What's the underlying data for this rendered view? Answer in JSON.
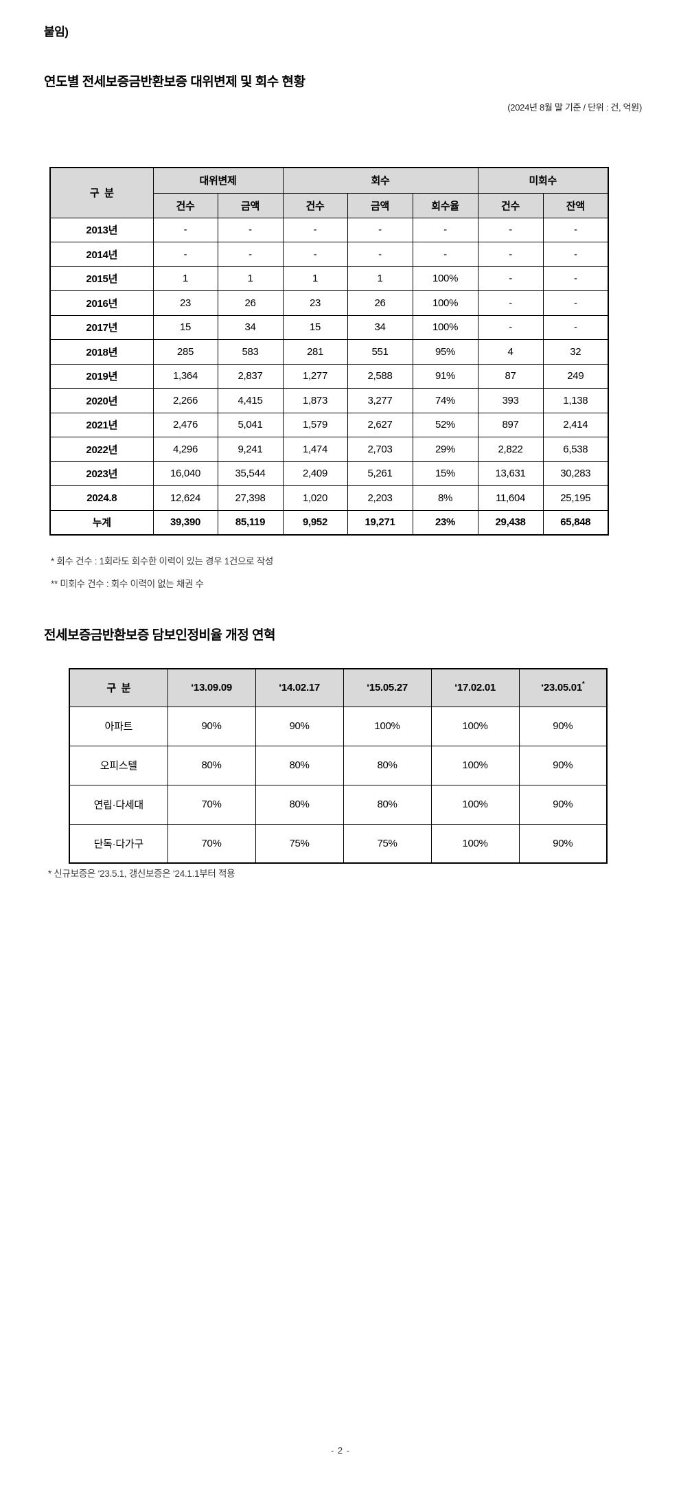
{
  "page": {
    "attachment_label": "붙임)",
    "page_number": "- 2 -"
  },
  "colors": {
    "header_bg": "#d9d9d9",
    "border": "#000000",
    "text": "#000000"
  },
  "section1": {
    "title": "연도별 전세보증금반환보증 대위변제 및 회수 현황",
    "caption": "(2024년 8월 말 기준 / 단위 : 건, 억원)",
    "table": {
      "col_group_header": "구  분",
      "groups": [
        {
          "label": "대위변제",
          "cols": [
            "건수",
            "금액"
          ]
        },
        {
          "label": "회수",
          "cols": [
            "건수",
            "금액",
            "회수율"
          ]
        },
        {
          "label": "미회수",
          "cols": [
            "건수",
            "잔액"
          ]
        }
      ],
      "rows": [
        {
          "label": "2013년",
          "total": false,
          "values": [
            "-",
            "-",
            "-",
            "-",
            "-",
            "-",
            "-"
          ]
        },
        {
          "label": "2014년",
          "total": false,
          "values": [
            "-",
            "-",
            "-",
            "-",
            "-",
            "-",
            "-"
          ]
        },
        {
          "label": "2015년",
          "total": false,
          "values": [
            "1",
            "1",
            "1",
            "1",
            "100%",
            "-",
            "-"
          ]
        },
        {
          "label": "2016년",
          "total": false,
          "values": [
            "23",
            "26",
            "23",
            "26",
            "100%",
            "-",
            "-"
          ]
        },
        {
          "label": "2017년",
          "total": false,
          "values": [
            "15",
            "34",
            "15",
            "34",
            "100%",
            "-",
            "-"
          ]
        },
        {
          "label": "2018년",
          "total": false,
          "values": [
            "285",
            "583",
            "281",
            "551",
            "95%",
            "4",
            "32"
          ]
        },
        {
          "label": "2019년",
          "total": false,
          "values": [
            "1,364",
            "2,837",
            "1,277",
            "2,588",
            "91%",
            "87",
            "249"
          ]
        },
        {
          "label": "2020년",
          "total": false,
          "values": [
            "2,266",
            "4,415",
            "1,873",
            "3,277",
            "74%",
            "393",
            "1,138"
          ]
        },
        {
          "label": "2021년",
          "total": false,
          "values": [
            "2,476",
            "5,041",
            "1,579",
            "2,627",
            "52%",
            "897",
            "2,414"
          ]
        },
        {
          "label": "2022년",
          "total": false,
          "values": [
            "4,296",
            "9,241",
            "1,474",
            "2,703",
            "29%",
            "2,822",
            "6,538"
          ]
        },
        {
          "label": "2023년",
          "total": false,
          "values": [
            "16,040",
            "35,544",
            "2,409",
            "5,261",
            "15%",
            "13,631",
            "30,283"
          ]
        },
        {
          "label": "2024.8",
          "total": false,
          "values": [
            "12,624",
            "27,398",
            "1,020",
            "2,203",
            "8%",
            "11,604",
            "25,195"
          ]
        },
        {
          "label": "누계",
          "total": true,
          "values": [
            "39,390",
            "85,119",
            "9,952",
            "19,271",
            "23%",
            "29,438",
            "65,848"
          ]
        }
      ]
    },
    "footnotes": [
      "* 회수 건수 : 1회라도 회수한 이력이 있는 경우 1건으로 작성",
      "** 미회수 건수 : 회수 이력이 없는 채권 수"
    ]
  },
  "section2": {
    "title": "전세보증금반환보증 담보인정비율 개정 연혁",
    "table": {
      "col_group_header": "구  분",
      "header_dates": [
        "‘13.09.09",
        "‘14.02.17",
        "‘15.05.27",
        "‘17.02.01",
        "‘23.05.01"
      ],
      "last_date_mark": "*",
      "rows": [
        {
          "label": "아파트",
          "values": [
            "90%",
            "90%",
            "100%",
            "100%",
            "90%"
          ]
        },
        {
          "label": "오피스텔",
          "values": [
            "80%",
            "80%",
            "80%",
            "100%",
            "90%"
          ]
        },
        {
          "label": "연립·다세대",
          "values": [
            "70%",
            "80%",
            "80%",
            "100%",
            "90%"
          ]
        },
        {
          "label": "단독·다가구",
          "values": [
            "70%",
            "75%",
            "75%",
            "100%",
            "90%"
          ]
        }
      ]
    },
    "footnote": "* 신규보증은 ‘23.5.1, 갱신보증은 ‘24.1.1부터 적용"
  }
}
